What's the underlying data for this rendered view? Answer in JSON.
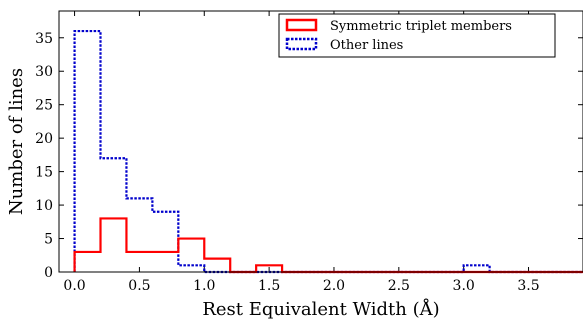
{
  "chart_data": {
    "type": "histogram",
    "xlabel": "Rest Equivalent Width (Å)",
    "ylabel": "Number of lines",
    "xlim": [
      -0.12,
      3.92
    ],
    "ylim": [
      0,
      39
    ],
    "xticks": [
      "0.0",
      "0.5",
      "1.0",
      "1.5",
      "2.0",
      "2.5",
      "3.0",
      "3.5"
    ],
    "xtick_values": [
      0.0,
      0.5,
      1.0,
      1.5,
      2.0,
      2.5,
      3.0,
      3.5
    ],
    "yticks": [
      "0",
      "5",
      "10",
      "15",
      "20",
      "25",
      "30",
      "35"
    ],
    "ytick_values": [
      0,
      5,
      10,
      15,
      20,
      25,
      30,
      35
    ],
    "bin_edges": [
      0.0,
      0.2,
      0.4,
      0.6,
      0.8,
      1.0,
      1.2,
      1.4,
      1.6,
      1.8,
      2.0,
      2.2,
      2.4,
      2.6,
      2.8,
      3.0,
      3.2,
      3.4,
      3.6,
      3.8,
      4.0
    ],
    "series": [
      {
        "name": "Symmetric triplet members",
        "color": "#ff0000",
        "style": "solid",
        "counts": [
          3,
          8,
          3,
          3,
          5,
          2,
          0,
          1,
          0,
          0,
          0,
          0,
          0,
          0,
          0,
          0,
          0,
          0,
          0,
          0
        ]
      },
      {
        "name": "Other lines",
        "color": "#0000cc",
        "style": "dotted",
        "counts": [
          36,
          17,
          11,
          9,
          1,
          0,
          0,
          0,
          0,
          0,
          0,
          0,
          0,
          0,
          0,
          1,
          0,
          0,
          0,
          0
        ]
      }
    ],
    "legend_position": "top-right",
    "grid": false
  }
}
